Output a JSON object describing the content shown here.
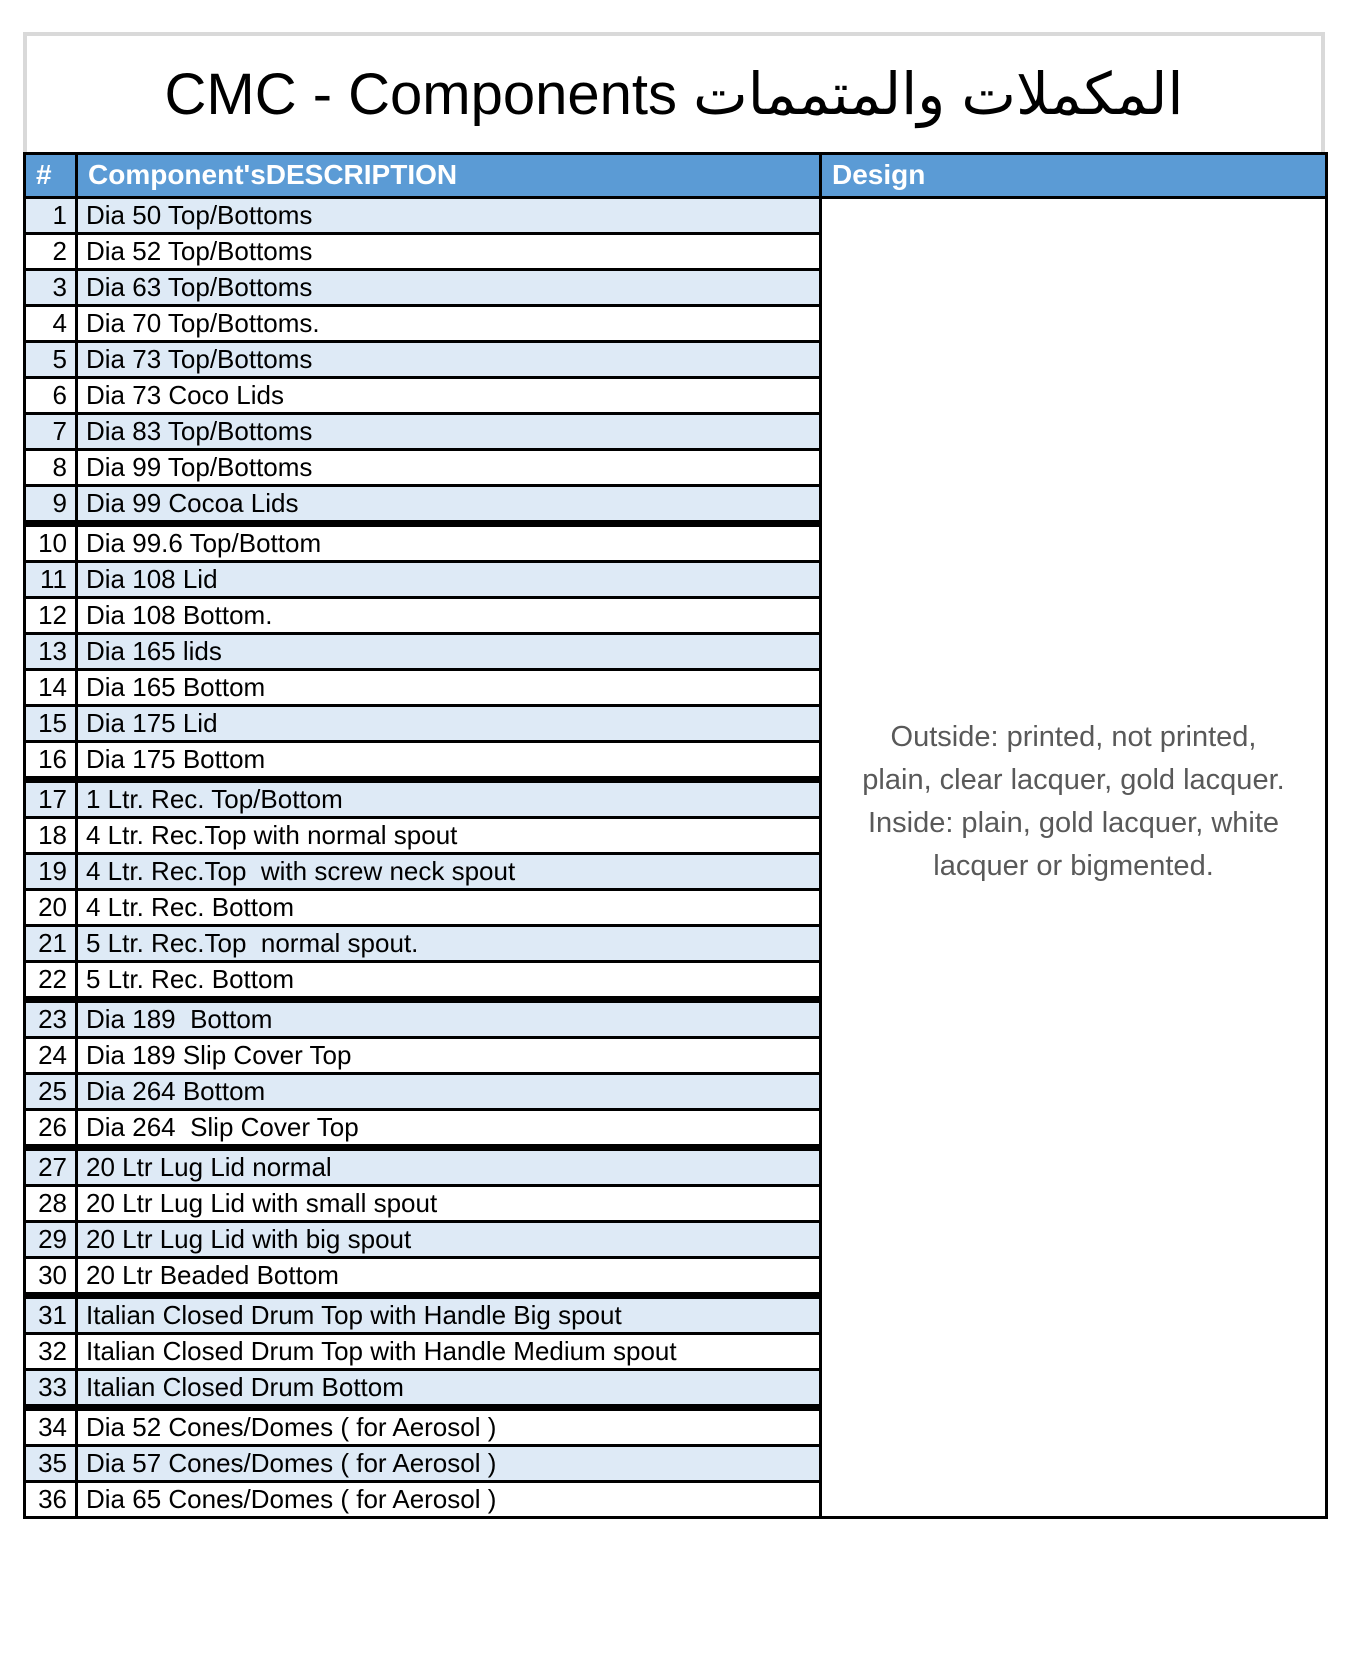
{
  "title": "CMC - Components المكملات والمتممات",
  "colors": {
    "header_bg": "#5B9BD5",
    "header_text": "#FFFFFF",
    "stripe_bg": "#DEEAF6",
    "grid_border": "#000000",
    "title_border": "#D9D9D9",
    "design_text": "#595959",
    "body_text": "#000000"
  },
  "table": {
    "headers": {
      "num": "#",
      "description": "Component'sDESCRIPTION",
      "design": "Design"
    },
    "design_lines": [
      "Outside: printed, not printed,",
      "plain, clear lacquer, gold lacquer.",
      "Inside: plain, gold lacquer, white",
      "lacquer or bigmented."
    ],
    "rows": [
      {
        "num": "1",
        "description": "Dia 50 Top/Bottoms",
        "shaded": true,
        "group_start": false
      },
      {
        "num": "2",
        "description": "Dia 52 Top/Bottoms",
        "shaded": false,
        "group_start": false
      },
      {
        "num": "3",
        "description": "Dia 63 Top/Bottoms",
        "shaded": true,
        "group_start": false
      },
      {
        "num": "4",
        "description": "Dia 70 Top/Bottoms.",
        "shaded": false,
        "group_start": false
      },
      {
        "num": "5",
        "description": "Dia 73 Top/Bottoms",
        "shaded": true,
        "group_start": false
      },
      {
        "num": "6",
        "description": "Dia 73 Coco Lids",
        "shaded": false,
        "group_start": false
      },
      {
        "num": "7",
        "description": "Dia 83 Top/Bottoms",
        "shaded": true,
        "group_start": false
      },
      {
        "num": "8",
        "description": "Dia 99 Top/Bottoms",
        "shaded": false,
        "group_start": false
      },
      {
        "num": "9",
        "description": "Dia 99 Cocoa Lids",
        "shaded": true,
        "group_start": false
      },
      {
        "num": "10",
        "description": "Dia 99.6 Top/Bottom",
        "shaded": false,
        "group_start": true
      },
      {
        "num": "11",
        "description": "Dia 108 Lid",
        "shaded": true,
        "group_start": false
      },
      {
        "num": "12",
        "description": "Dia 108 Bottom.",
        "shaded": false,
        "group_start": false
      },
      {
        "num": "13",
        "description": "Dia 165 lids",
        "shaded": true,
        "group_start": false
      },
      {
        "num": "14",
        "description": "Dia 165 Bottom",
        "shaded": false,
        "group_start": false
      },
      {
        "num": "15",
        "description": "Dia 175 Lid",
        "shaded": true,
        "group_start": false
      },
      {
        "num": "16",
        "description": "Dia 175 Bottom",
        "shaded": false,
        "group_start": false
      },
      {
        "num": "17",
        "description": "1 Ltr. Rec. Top/Bottom",
        "shaded": true,
        "group_start": true
      },
      {
        "num": "18",
        "description": "4 Ltr. Rec.Top with normal spout",
        "shaded": false,
        "group_start": false
      },
      {
        "num": "19",
        "description": "4 Ltr. Rec.Top  with screw neck spout",
        "shaded": true,
        "group_start": false
      },
      {
        "num": "20",
        "description": "4 Ltr. Rec. Bottom",
        "shaded": false,
        "group_start": false
      },
      {
        "num": "21",
        "description": "5 Ltr. Rec.Top  normal spout.",
        "shaded": true,
        "group_start": false
      },
      {
        "num": "22",
        "description": "5 Ltr. Rec. Bottom",
        "shaded": false,
        "group_start": false
      },
      {
        "num": "23",
        "description": "Dia 189  Bottom",
        "shaded": true,
        "group_start": true
      },
      {
        "num": "24",
        "description": "Dia 189 Slip Cover Top",
        "shaded": false,
        "group_start": false
      },
      {
        "num": "25",
        "description": "Dia 264 Bottom",
        "shaded": true,
        "group_start": false
      },
      {
        "num": "26",
        "description": "Dia 264  Slip Cover Top",
        "shaded": false,
        "group_start": false
      },
      {
        "num": "27",
        "description": "20 Ltr Lug Lid normal",
        "shaded": true,
        "group_start": true
      },
      {
        "num": "28",
        "description": "20 Ltr Lug Lid with small spout",
        "shaded": false,
        "group_start": false
      },
      {
        "num": "29",
        "description": "20 Ltr Lug Lid with big spout",
        "shaded": true,
        "group_start": false
      },
      {
        "num": "30",
        "description": "20 Ltr Beaded Bottom",
        "shaded": false,
        "group_start": false
      },
      {
        "num": "31",
        "description": "Italian Closed Drum Top with Handle Big spout",
        "shaded": true,
        "group_start": true
      },
      {
        "num": "32",
        "description": "Italian Closed Drum Top with Handle Medium spout",
        "shaded": false,
        "group_start": false
      },
      {
        "num": "33",
        "description": "Italian Closed Drum Bottom",
        "shaded": true,
        "group_start": false
      },
      {
        "num": "34",
        "description": "Dia 52 Cones/Domes ( for Aerosol )",
        "shaded": false,
        "group_start": true
      },
      {
        "num": "35",
        "description": "Dia 57 Cones/Domes ( for Aerosol )",
        "shaded": true,
        "group_start": false
      },
      {
        "num": "36",
        "description": "Dia 65 Cones/Domes ( for Aerosol )",
        "shaded": false,
        "group_start": false
      }
    ]
  }
}
